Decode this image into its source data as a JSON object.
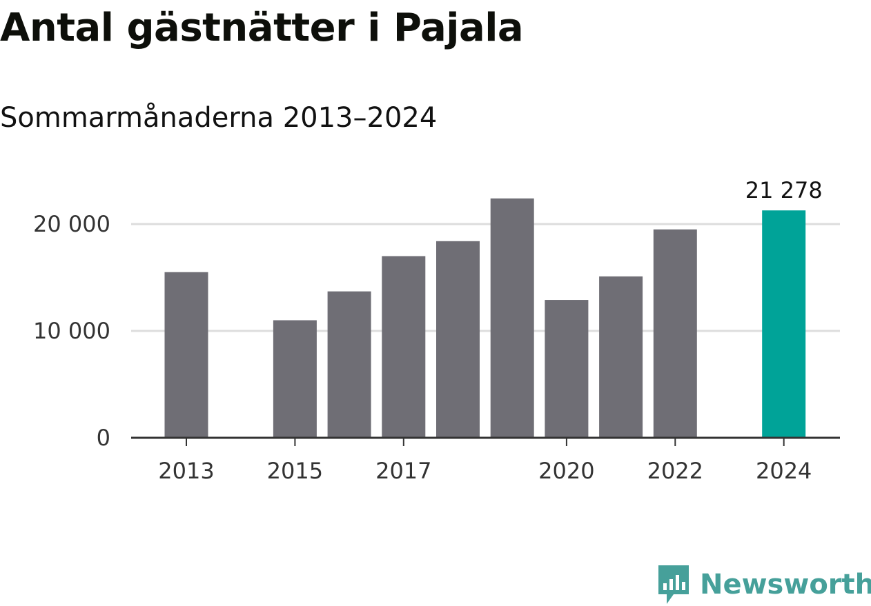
{
  "header": {
    "title": "Antal gästnätter i Pajala",
    "subtitle": "Sommarmånaderna 2013–2024"
  },
  "colors": {
    "bar": "#6f6e75",
    "highlight": "#00a398",
    "grid": "#dddddd",
    "axis": "#333333",
    "logo": "#46a09a"
  },
  "chart_data": {
    "type": "bar",
    "title": "Antal gästnätter i Pajala",
    "subtitle": "Sommarmånaderna 2013–2024",
    "categories": [
      "2013",
      "2014",
      "2015",
      "2016",
      "2017",
      "2018",
      "2019",
      "2020",
      "2021",
      "2022",
      "2023",
      "2024"
    ],
    "values": [
      15500,
      null,
      11000,
      13700,
      17000,
      18400,
      22400,
      12900,
      15100,
      19500,
      null,
      21278
    ],
    "highlight_index": 11,
    "highlight_label": "21 278",
    "x_tick_labels": [
      "2013",
      "2015",
      "2017",
      "2020",
      "2022",
      "2024"
    ],
    "y_ticks": [
      0,
      10000,
      20000
    ],
    "y_tick_labels": [
      "0",
      "10 000",
      "20 000"
    ],
    "ylim": [
      0,
      23000
    ],
    "grid": true,
    "xlabel": "",
    "ylabel": ""
  },
  "logo": {
    "text": "Newsworthy",
    "icon": "bar-chart-speech-bubble-icon"
  }
}
